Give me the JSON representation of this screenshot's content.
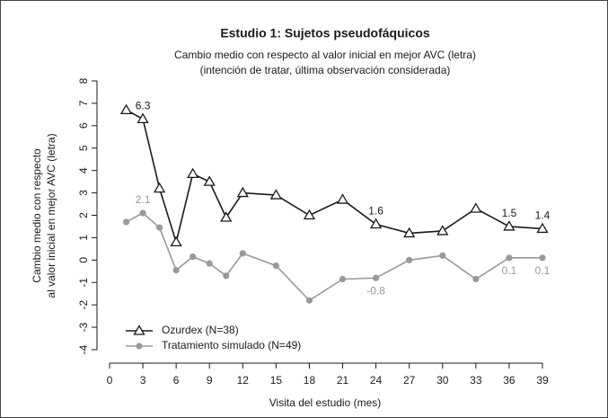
{
  "chart_data": {
    "type": "line",
    "title": "Estudio 1: Sujetos pseudofáquicos",
    "subtitle": [
      "Cambio medio con respecto al valor inicial en mejor AVC (letra)",
      "(intención de tratar, última observación considerada)"
    ],
    "y_label": [
      "Cambio medio con respecto",
      "al valor inicial en mejor AVC (letra)"
    ],
    "x_label": "Visita del estudio (mes)",
    "x": [
      1.5,
      3,
      4.5,
      6,
      7.5,
      9,
      10.5,
      12,
      15,
      18,
      21,
      24,
      27,
      30,
      33,
      36,
      39
    ],
    "series": [
      {
        "name": "Ozurdex (N=38)",
        "color": "#1a1a1a",
        "marker": "triangle",
        "values": [
          6.7,
          6.3,
          3.2,
          0.8,
          3.85,
          3.5,
          1.9,
          3.0,
          2.9,
          2.0,
          2.7,
          1.6,
          1.2,
          1.3,
          2.3,
          1.5,
          1.4
        ],
        "value_labels": [
          null,
          "6.3",
          null,
          null,
          null,
          null,
          null,
          null,
          null,
          null,
          null,
          "1.6",
          null,
          null,
          null,
          "1.5",
          "1.4"
        ]
      },
      {
        "name": "Tratamiento simulado (N=49)",
        "color": "#999999",
        "marker": "circle",
        "values": [
          1.7,
          2.1,
          1.45,
          -0.45,
          0.15,
          -0.15,
          -0.7,
          0.3,
          -0.25,
          -1.8,
          -0.85,
          -0.8,
          0.0,
          0.2,
          -0.85,
          0.1,
          0.1
        ],
        "value_labels": [
          null,
          "2.1",
          null,
          null,
          null,
          null,
          null,
          null,
          null,
          null,
          null,
          "-0.8",
          null,
          null,
          null,
          "0.1",
          "0.1"
        ]
      }
    ],
    "xlim": [
      0,
      39
    ],
    "xticks": [
      0,
      3,
      6,
      9,
      12,
      15,
      18,
      21,
      24,
      27,
      30,
      33,
      36,
      39
    ],
    "ylim": [
      -4,
      8
    ],
    "yticks": [
      -4,
      -3,
      -2,
      -1,
      0,
      1,
      2,
      3,
      4,
      5,
      6,
      7,
      8
    ],
    "legend": "lower left"
  }
}
